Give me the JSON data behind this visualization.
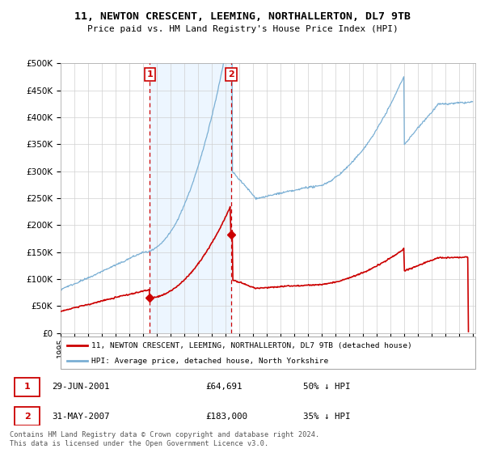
{
  "title": "11, NEWTON CRESCENT, LEEMING, NORTHALLERTON, DL7 9TB",
  "subtitle": "Price paid vs. HM Land Registry's House Price Index (HPI)",
  "sale1_date": "29-JUN-2001",
  "sale1_price": 64691,
  "sale2_date": "31-MAY-2007",
  "sale2_price": 183000,
  "legend_property": "11, NEWTON CRESCENT, LEEMING, NORTHALLERTON, DL7 9TB (detached house)",
  "legend_hpi": "HPI: Average price, detached house, North Yorkshire",
  "footer": "Contains HM Land Registry data © Crown copyright and database right 2024.\nThis data is licensed under the Open Government Licence v3.0.",
  "property_color": "#cc0000",
  "hpi_color": "#7aafd4",
  "highlight_bg": "#ddeeff",
  "ylim": [
    0,
    500000
  ],
  "xlim_start": 1995.0,
  "xlim_end": 2025.2
}
